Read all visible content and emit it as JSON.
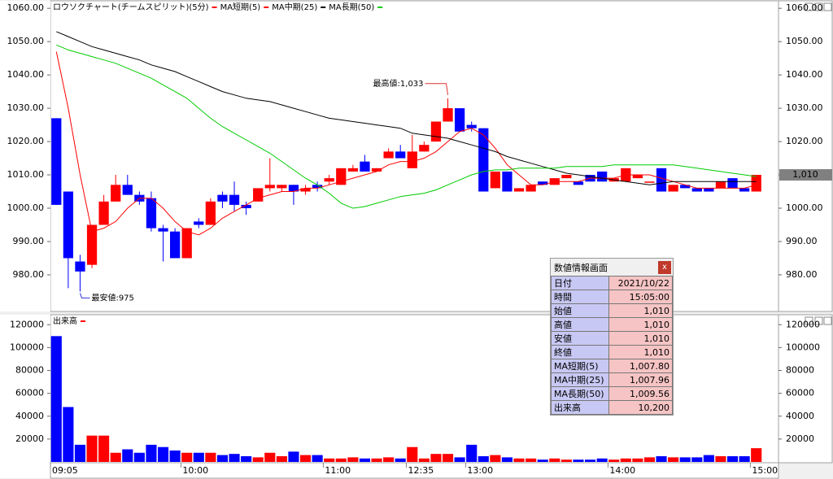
{
  "chart_data": [
    {
      "type": "candlestick",
      "title": "ロウソクチャート(チームスピリット)(5分)",
      "color": "#ff0000",
      "open": [
        1027,
        1005,
        984,
        983,
        995,
        1002,
        1007,
        1004,
        1003,
        994,
        993,
        985,
        996,
        995,
        1004,
        1004,
        1001,
        1002,
        1006,
        1006,
        1007,
        1005,
        1007,
        1008,
        1007,
        1011,
        1014,
        1011,
        1015,
        1017,
        1012,
        1017,
        1020,
        1026,
        1030,
        1025,
        1024,
        1006,
        1011,
        1005,
        1005,
        1008,
        1007,
        1009,
        1008,
        1010,
        1011,
        1008,
        1008,
        1009,
        1008,
        1012,
        1005,
        1007,
        1006,
        1006,
        1006,
        1009,
        1006,
        1005
      ],
      "high": [
        1027,
        1005,
        986,
        995,
        1004,
        1010,
        1010,
        1005,
        1005,
        995,
        994,
        994,
        997,
        1003,
        1005,
        1008,
        1002,
        1006,
        1015,
        1007,
        1007,
        1007,
        1008,
        1010,
        1012,
        1013,
        1016,
        1012,
        1018,
        1019,
        1022,
        1020,
        1026,
        1033,
        1030,
        1026,
        1024,
        1011,
        1011,
        1006,
        1007,
        1008,
        1009,
        1010,
        1008,
        1010,
        1011,
        1009,
        1012,
        1010,
        1008,
        1012,
        1007,
        1007,
        1006,
        1006,
        1008,
        1009,
        1006,
        1010
      ],
      "low": [
        1001,
        976,
        975,
        982,
        995,
        1002,
        1004,
        1001,
        993,
        984,
        985,
        985,
        994,
        995,
        1000,
        999,
        998,
        1002,
        1005,
        1005,
        1001,
        1004,
        1005,
        1007,
        1007,
        1011,
        1011,
        1011,
        1015,
        1015,
        1012,
        1017,
        1020,
        1026,
        1023,
        1023,
        1005,
        1006,
        1005,
        1005,
        1005,
        1007,
        1007,
        1009,
        1007,
        1008,
        1008,
        1008,
        1008,
        1009,
        1008,
        1005,
        1005,
        1006,
        1005,
        1005,
        1006,
        1006,
        1005,
        1005
      ],
      "close": [
        1001,
        985,
        981,
        995,
        1002,
        1007,
        1004,
        1002,
        994,
        993,
        985,
        994,
        995,
        1002,
        1002,
        1001,
        1000,
        1006,
        1007,
        1007,
        1005,
        1006,
        1006,
        1009,
        1012,
        1012,
        1011,
        1012,
        1017,
        1015,
        1017,
        1019,
        1026,
        1030,
        1023,
        1024,
        1005,
        1011,
        1005,
        1006,
        1007,
        1007,
        1009,
        1010,
        1007,
        1008,
        1008,
        1009,
        1012,
        1010,
        1008,
        1005,
        1007,
        1006,
        1005,
        1005,
        1008,
        1006,
        1005,
        1010
      ],
      "up_color": "#ff0000",
      "down_color": "#0000ff",
      "ma": [
        {
          "name": "MA短期(5)",
          "color": "#ff0000",
          "values": [
            1047,
            1030,
            1010,
            993,
            994,
            996,
            1000,
            1003,
            1003,
            1000,
            996,
            993,
            992,
            994,
            997,
            999,
            1001,
            1003,
            1004,
            1005,
            1005,
            1006,
            1006,
            1007,
            1008,
            1009,
            1010,
            1011,
            1013,
            1014,
            1014,
            1015,
            1017,
            1020,
            1023,
            1024,
            1022,
            1018,
            1013,
            1010,
            1007,
            1007,
            1008,
            1008,
            1008,
            1009,
            1009,
            1009,
            1010,
            1010,
            1010,
            1009,
            1008,
            1007,
            1006,
            1006,
            1006,
            1006,
            1006,
            1007
          ]
        },
        {
          "name": "MA中期(25)",
          "color": "#000000",
          "values": [
            1053,
            1051.5,
            1050,
            1048.5,
            1047.5,
            1046.5,
            1045.5,
            1044.5,
            1043,
            1042,
            1041,
            1039.5,
            1038,
            1036.5,
            1035,
            1034,
            1033,
            1032.5,
            1032,
            1031,
            1030,
            1029,
            1028,
            1027,
            1026.5,
            1026,
            1025.5,
            1025,
            1024.5,
            1024,
            1022.5,
            1022,
            1021.5,
            1021,
            1020,
            1019,
            1018,
            1017,
            1015.5,
            1014.5,
            1013.5,
            1012.5,
            1011.5,
            1010.5,
            1010,
            1009.5,
            1009,
            1008.5,
            1008,
            1007.5,
            1007,
            1007.5,
            1008,
            1008,
            1008,
            1008,
            1008,
            1008,
            1008,
            1008
          ]
        },
        {
          "name": "MA長期(50)",
          "color": "#00cc00",
          "values": [
            1049,
            1047.5,
            1046.5,
            1045.5,
            1044.5,
            1043.5,
            1042,
            1040.5,
            1039,
            1037,
            1035,
            1033,
            1030,
            1027,
            1024.5,
            1022.5,
            1020.5,
            1018.5,
            1016.5,
            1014,
            1011.5,
            1009,
            1007,
            1004.5,
            1001.5,
            1000,
            1000.5,
            1001.5,
            1002.5,
            1003.5,
            1004,
            1004.5,
            1005.5,
            1007,
            1008.5,
            1010,
            1011,
            1011.5,
            1011.5,
            1012,
            1012,
            1012,
            1012,
            1012.5,
            1012.5,
            1012.5,
            1012.5,
            1013,
            1013,
            1013,
            1013,
            1013,
            1013,
            1012.5,
            1012,
            1011.5,
            1011,
            1010.5,
            1010,
            1009.5
          ]
        }
      ],
      "ylim": [
        969,
        1062
      ],
      "yticks": [
        {
          "value": 980,
          "label": "980.00"
        },
        {
          "value": 990,
          "label": "990.00"
        },
        {
          "value": 1000,
          "label": "1000.00"
        },
        {
          "value": 1010,
          "label": "1010.00"
        },
        {
          "value": 1020,
          "label": "1020.00"
        },
        {
          "value": 1030,
          "label": "1030.00"
        },
        {
          "value": 1040,
          "label": "1040.00"
        },
        {
          "value": 1050,
          "label": "1050.00"
        },
        {
          "value": 1060,
          "label": "1060.00"
        }
      ],
      "annotations": [
        {
          "text": "最高値:1,033",
          "value": 1033,
          "of": "high",
          "color": "#e03030"
        },
        {
          "text": "最安値:975",
          "value": 975,
          "of": "low",
          "color": "#3030e0"
        }
      ],
      "last_price": {
        "value": 1010,
        "label": "1,010"
      }
    },
    {
      "type": "bar",
      "title": "出来高",
      "color": "#ff0000",
      "categories": [
        "09:05",
        null,
        null,
        null,
        null,
        null,
        null,
        null,
        null,
        null,
        null,
        "10:00",
        null,
        null,
        null,
        null,
        null,
        null,
        null,
        null,
        null,
        null,
        null,
        "11:00",
        null,
        null,
        null,
        null,
        null,
        null,
        "12:35",
        null,
        null,
        null,
        null,
        "13:00",
        null,
        null,
        null,
        null,
        null,
        null,
        null,
        null,
        null,
        null,
        null,
        "14:00",
        null,
        null,
        null,
        null,
        null,
        null,
        null,
        null,
        null,
        null,
        null,
        "15:00"
      ],
      "values": [
        110000,
        48000,
        15000,
        23000,
        23000,
        8000,
        11000,
        8000,
        15000,
        13000,
        10000,
        8000,
        8000,
        8000,
        6000,
        7000,
        5000,
        4000,
        8000,
        5000,
        9000,
        6000,
        6000,
        3000,
        3000,
        4000,
        3000,
        3000,
        4000,
        3000,
        13000,
        3000,
        7000,
        7000,
        4000,
        15000,
        5000,
        6000,
        4000,
        3000,
        3000,
        2000,
        3000,
        2000,
        2000,
        2000,
        3000,
        2000,
        3000,
        3000,
        4000,
        5000,
        4000,
        4000,
        4000,
        6000,
        5000,
        5000,
        5000,
        12000
      ],
      "ylim": [
        0,
        128000
      ],
      "yticks": [
        20000,
        40000,
        60000,
        80000,
        100000,
        120000
      ]
    }
  ],
  "info_panel": {
    "title": "数値情報画面",
    "close": "x",
    "rows": [
      [
        "日付",
        "2021/10/22"
      ],
      [
        "時間",
        "15:05:00"
      ],
      [
        "始値",
        "1,010"
      ],
      [
        "高値",
        "1,010"
      ],
      [
        "安値",
        "1,010"
      ],
      [
        "終値",
        "1,010"
      ],
      [
        "MA短期(5)",
        "1,007.80"
      ],
      [
        "MA中期(25)",
        "1,007.96"
      ],
      [
        "MA長期(50)",
        "1,009.56"
      ],
      [
        "出来高",
        "10,200"
      ]
    ]
  }
}
